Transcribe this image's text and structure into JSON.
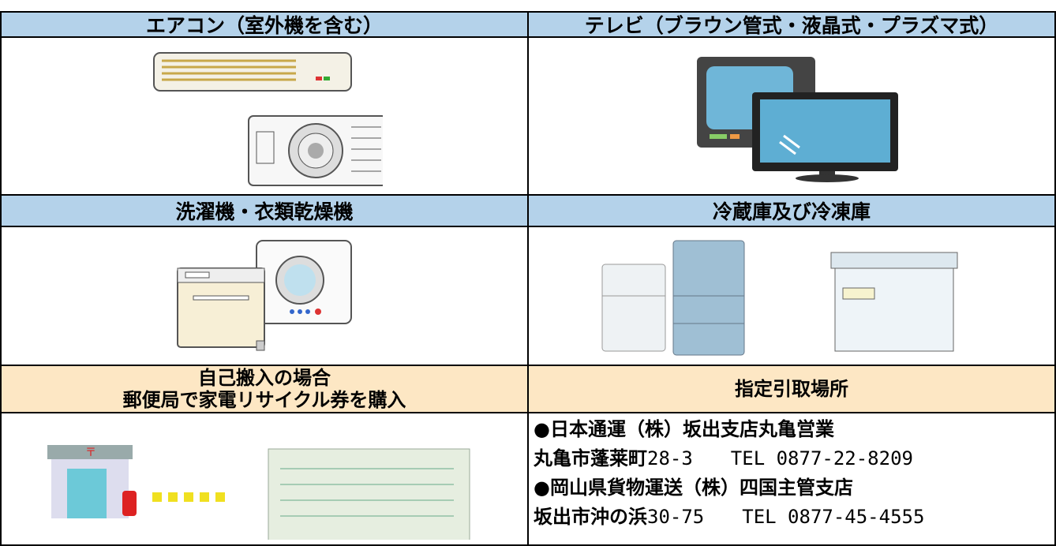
{
  "categories": [
    {
      "left": "エアコン（室外機を含む）",
      "right": "テレビ（ブラウン管式・液晶式・プラズマ式）"
    },
    {
      "left": "洗濯機・衣類乾燥機",
      "right": "冷蔵庫及び冷凍庫"
    }
  ],
  "self_delivery": {
    "lines": [
      "自己搬入の場合",
      "郵便局で家電リサイクル券を購入"
    ]
  },
  "designated_sites": {
    "heading": "指定引取場所",
    "sites": [
      {
        "name": "●日本通運（株）坂出支店丸亀営業",
        "city": "丸亀市蓬莱町",
        "detail": "28-3　　TEL 0877-22-8209"
      },
      {
        "name": "●岡山県貨物運送（株）四国主管支店",
        "city": "坂出市沖の浜",
        "detail": "30-75　　TEL 0877-45-4555"
      }
    ]
  }
}
